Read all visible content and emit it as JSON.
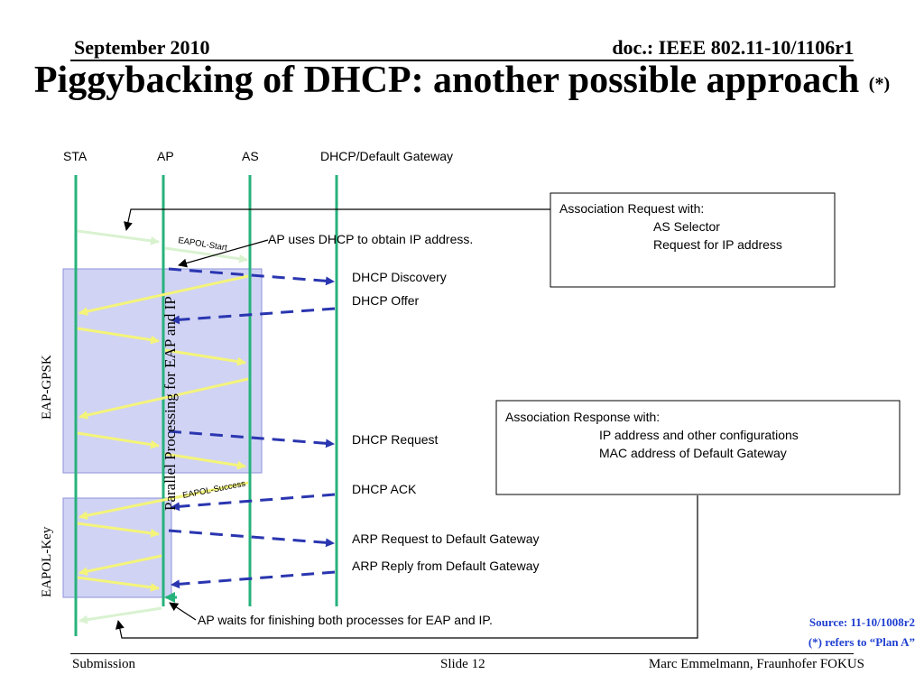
{
  "header": {
    "date": "September 2010",
    "doc": "doc.: IEEE 802.11-10/1106r1"
  },
  "title": {
    "main": "Piggybacking of DHCP: another possible approach",
    "marker": "(*)"
  },
  "lanes": [
    "STA",
    "AP",
    "AS",
    "DHCP/Default Gateway"
  ],
  "labels": {
    "eapol_start": "EAPOL-Start",
    "eapol_success": "EAPOL-Success",
    "ap_dhcp": "AP uses DHCP to obtain IP address.",
    "ap_wait": "AP waits for finishing both processes for EAP and IP.",
    "parallel": "Parallel Processing for EAP and IP",
    "eap_gpsk": "EAP-GPSK",
    "eapol_key": "EAPOL-Key"
  },
  "dhcp_messages": [
    "DHCP Discovery",
    "DHCP Offer",
    "DHCP Request",
    "DHCP ACK",
    "ARP Request to Default Gateway",
    "ARP Reply from Default Gateway"
  ],
  "assoc_request": {
    "title": "Association Request with:",
    "items": [
      "AS Selector",
      "Request for IP address"
    ]
  },
  "assoc_response": {
    "title": "Association Response with:",
    "items": [
      "IP address and other configurations",
      "MAC address of Default Gateway"
    ]
  },
  "source": {
    "line1": "Source: 11-10/1008r2",
    "line2": "(*) refers to “Plan A”"
  },
  "footer": {
    "left": "Submission",
    "center": "Slide 12",
    "right": "Marc Emmelmann, Fraunhofer FOKUS"
  },
  "colors": {
    "lane": "#27b27c",
    "eap_arrow": "#f4f47a",
    "dhcp_arrow": "#2a36b0",
    "shade": "#d0d3f4",
    "source_text": "#1f3fd0"
  }
}
